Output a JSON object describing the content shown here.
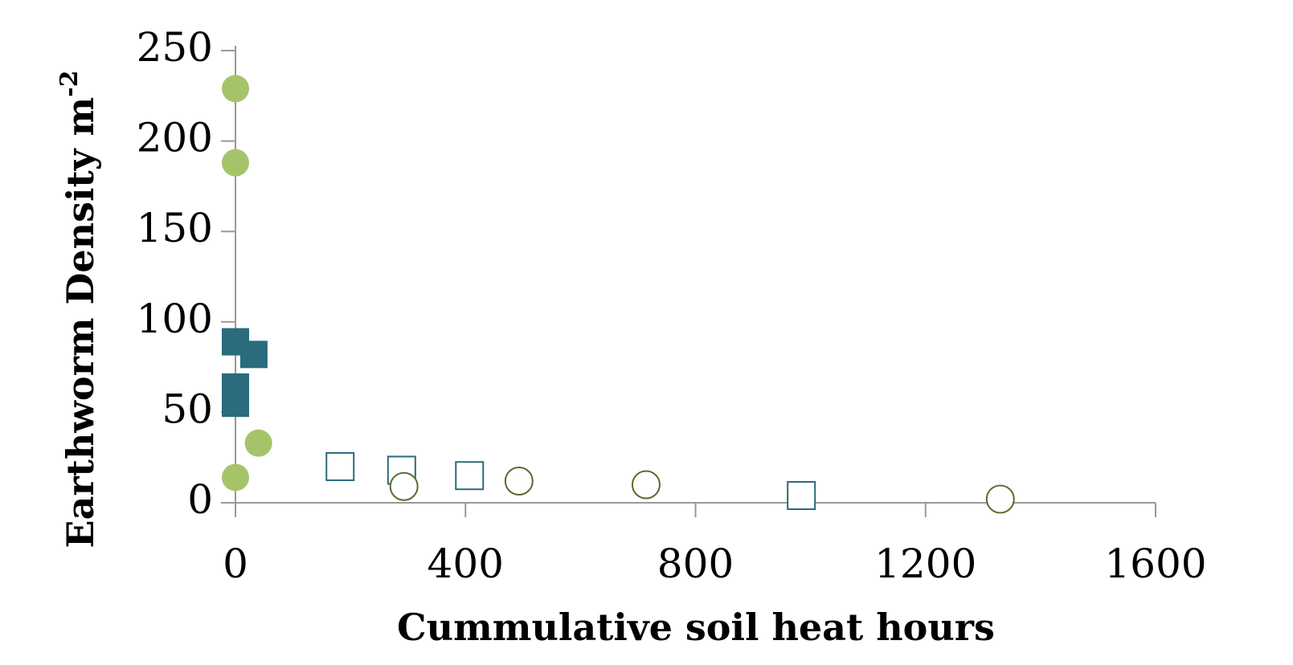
{
  "chart_data": {
    "type": "scatter",
    "x_label": "Cummulative soil heat hours",
    "y_label": {
      "text": "Earthworm Density m",
      "superscript": "-2"
    },
    "xlim": [
      0,
      1600
    ],
    "xticks": [
      0,
      400,
      800,
      1200,
      1600
    ],
    "ylim": [
      0,
      250
    ],
    "yticks": [
      0,
      50,
      100,
      150,
      200,
      250
    ],
    "grid": false,
    "series": [
      {
        "color": "#a5c46a",
        "marker": "circle",
        "filled": true,
        "x": [
          0,
          0,
          40,
          0
        ],
        "values": [
          229,
          188,
          33,
          14
        ]
      },
      {
        "color": "#2a6b7c",
        "marker": "square",
        "filled": true,
        "x": [
          0,
          32,
          0,
          0
        ],
        "values": [
          89,
          82,
          64,
          55
        ]
      },
      {
        "color": "#2a6b7c",
        "marker": "square",
        "filled": false,
        "x": [
          182,
          289,
          407,
          984
        ],
        "values": [
          20,
          18,
          15,
          4
        ]
      },
      {
        "color": "#5a6b2a",
        "marker": "circle",
        "filled": false,
        "x": [
          293,
          493,
          714,
          1330
        ],
        "values": [
          9,
          12,
          10,
          2
        ]
      }
    ]
  }
}
